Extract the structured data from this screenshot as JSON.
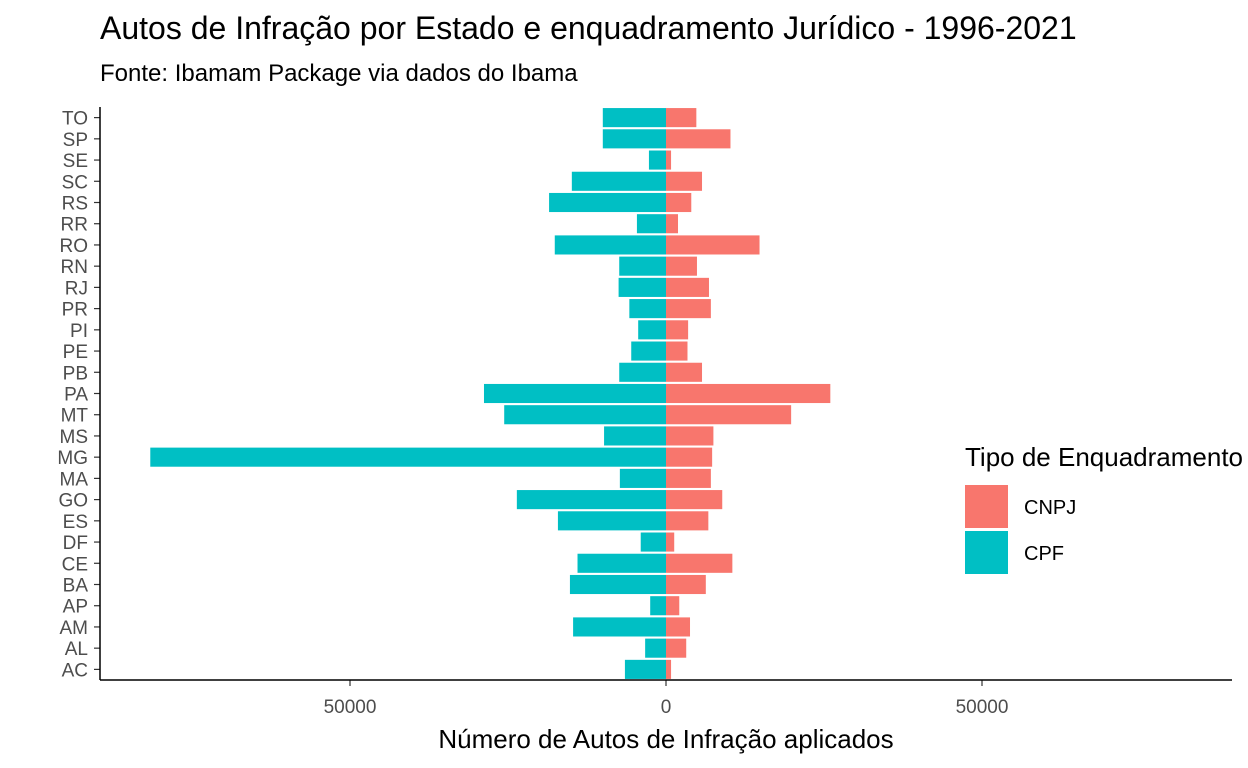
{
  "chart_data": {
    "type": "bar",
    "orientation": "horizontal",
    "layout": "diverging",
    "title": "Autos de Infração por Estado e enquadramento Jurídico - 1996-2021",
    "subtitle": "Fonte: Ibamam Package via dados do Ibama",
    "xlabel": "Número de Autos de Infração aplicados",
    "ylabel": "",
    "xlim": [
      -90000,
      90000
    ],
    "x_ticks": [
      {
        "value": -50000,
        "label": "50000"
      },
      {
        "value": 0,
        "label": "0"
      },
      {
        "value": 50000,
        "label": "50000"
      }
    ],
    "categories": [
      "AC",
      "AL",
      "AM",
      "AP",
      "BA",
      "CE",
      "DF",
      "ES",
      "GO",
      "MA",
      "MG",
      "MS",
      "MT",
      "PA",
      "PB",
      "PE",
      "PI",
      "PR",
      "RJ",
      "RN",
      "RO",
      "RR",
      "RS",
      "SC",
      "SE",
      "SP",
      "TO"
    ],
    "series": [
      {
        "name": "CNPJ",
        "color": "#F8766D",
        "side": "right",
        "values": [
          800,
          3200,
          3800,
          2100,
          6300,
          10500,
          1300,
          6700,
          8900,
          7100,
          7300,
          7500,
          19800,
          26000,
          5700,
          3400,
          3500,
          7100,
          6800,
          4900,
          14800,
          1900,
          4000,
          5700,
          800,
          10200,
          4800
        ]
      },
      {
        "name": "CPF",
        "color": "#00BFC4",
        "side": "left",
        "values": [
          6500,
          3300,
          14700,
          2500,
          15200,
          14000,
          4000,
          17100,
          23600,
          7300,
          81600,
          9800,
          25600,
          28800,
          7400,
          5500,
          4400,
          5800,
          7500,
          7400,
          17600,
          4600,
          18500,
          14900,
          2700,
          10000,
          10000
        ]
      }
    ],
    "grid": false,
    "legend": {
      "title": "Tipo de Enquadramento",
      "position": "right"
    }
  }
}
